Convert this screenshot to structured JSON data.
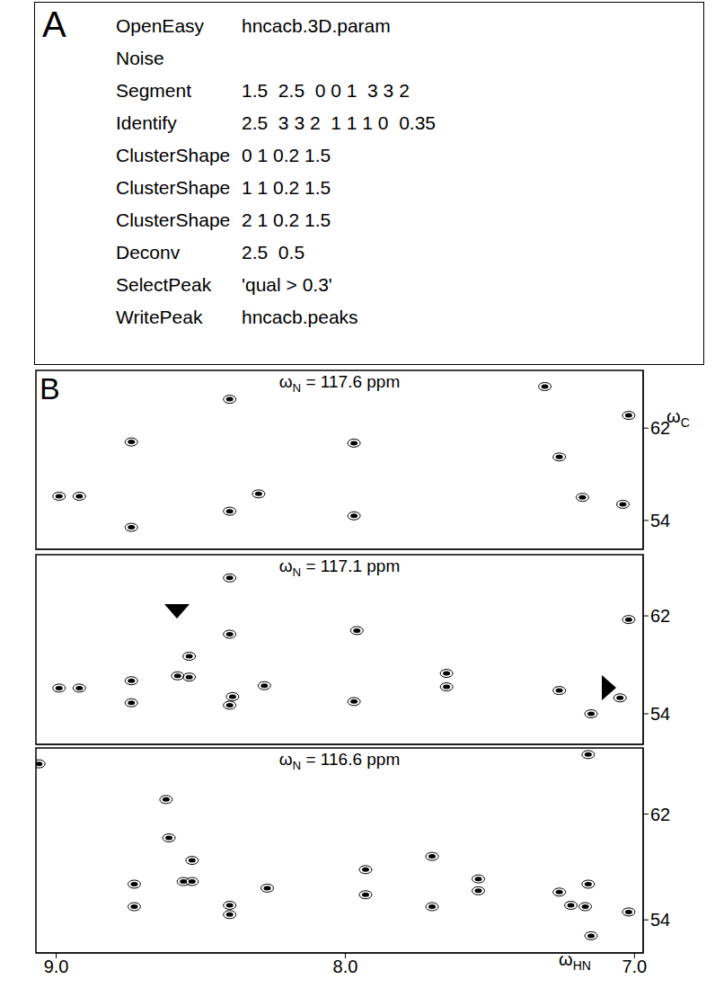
{
  "panel_a": {
    "letter": "A",
    "lines": [
      [
        "OpenEasy",
        "hncacb.3D.param"
      ],
      [
        "Noise"
      ],
      [
        "Segment",
        "1.5  2.5  0 0 1  3 3 2"
      ],
      [
        "Identify",
        "2.5  3 3 2  1 1 1 0  0.35"
      ],
      [
        "ClusterShape",
        "0 1 0.2 1.5"
      ],
      [
        "ClusterShape",
        "1 1 0.2 1.5"
      ],
      [
        "ClusterShape",
        "2 1 0.2 1.5"
      ],
      [
        "Deconv",
        "2.5  0.5"
      ],
      [
        "SelectPeak",
        "'qual > 0.3'"
      ],
      [
        "WritePeak",
        "hncacb.peaks"
      ]
    ]
  },
  "panel_b": {
    "letter": "B"
  },
  "chart_data": [
    {
      "type": "scatter",
      "title": "ωN = 117.6 ppm",
      "y_label": "ωC",
      "x": [
        8.74,
        8.99,
        8.92,
        8.74,
        8.3,
        7.97,
        7.97,
        8.4,
        8.4,
        7.26,
        7.18,
        7.04,
        7.02,
        7.31
      ],
      "y": [
        53.4,
        56.1,
        56.1,
        60.8,
        56.3,
        54.4,
        60.7,
        54.8,
        64.5,
        59.5,
        56.0,
        55.4,
        63.1,
        65.6
      ],
      "xlim": [
        9.07,
        6.97
      ],
      "ylim": [
        67,
        51.5
      ],
      "xticks": [
        {
          "value": 9,
          "label": "9.0"
        },
        {
          "value": 8,
          "label": "8.0"
        },
        {
          "value": 7,
          "label": "7.0"
        }
      ],
      "yticks": [
        54,
        62
      ],
      "color": "#000000",
      "marker": "contour",
      "tick_labels": "y"
    },
    {
      "type": "scatter",
      "title": "ωN = 117.1 ppm",
      "x": [
        8.99,
        8.92,
        8.74,
        8.74,
        8.58,
        8.54,
        8.54,
        8.4,
        8.39,
        8.4,
        8.28,
        7.97,
        7.96,
        7.65,
        7.65,
        7.26,
        7.15,
        7.05,
        7.02,
        8.4
      ],
      "y": [
        56.1,
        56.1,
        54.9,
        56.7,
        57.1,
        57.0,
        58.7,
        54.7,
        55.4,
        60.5,
        56.3,
        55.0,
        60.8,
        56.2,
        57.3,
        55.9,
        54.0,
        55.3,
        61.7,
        65.1
      ],
      "xlim": [
        9.07,
        6.97
      ],
      "ylim": [
        67,
        51.5
      ],
      "xticks": [
        {
          "value": 9,
          "label": "9.0"
        },
        {
          "value": 8,
          "label": "8.0"
        },
        {
          "value": 7,
          "label": "7.0"
        }
      ],
      "yticks": [
        54,
        62
      ],
      "color": "#000000",
      "marker": "contour",
      "tick_labels": "y"
    },
    {
      "type": "scatter",
      "title": "ωN = 116.6 ppm",
      "x_label": "ωHN",
      "x": [
        8.73,
        8.73,
        8.4,
        8.4,
        8.27,
        8.56,
        8.53,
        8.53,
        8.61,
        8.62,
        9.06,
        7.93,
        7.93,
        7.7,
        7.7,
        7.54,
        7.54,
        7.26,
        7.22,
        7.17,
        7.16,
        7.15,
        7.02,
        7.16
      ],
      "y": [
        55.0,
        56.7,
        54.4,
        55.1,
        56.4,
        56.9,
        56.9,
        58.5,
        60.2,
        63.1,
        65.8,
        55.9,
        57.8,
        55.0,
        58.8,
        56.2,
        57.1,
        56.1,
        55.1,
        55.0,
        56.7,
        52.8,
        54.6,
        66.5
      ],
      "xlim": [
        9.07,
        6.97
      ],
      "ylim": [
        67,
        51.5
      ],
      "xticks": [
        {
          "value": 9,
          "label": "9.0"
        },
        {
          "value": 8,
          "label": "8.0"
        },
        {
          "value": 7,
          "label": "7.0"
        }
      ],
      "yticks": [
        54,
        62
      ],
      "color": "#000000",
      "marker": "contour"
    }
  ]
}
